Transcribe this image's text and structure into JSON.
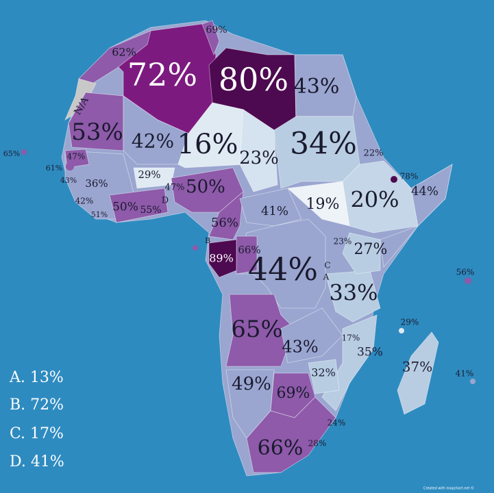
{
  "map": {
    "labels": [
      "72%",
      "80%",
      "69%",
      "62%",
      "43%",
      "N/A",
      "53%",
      "42%",
      "16%",
      "23%",
      "34%",
      "22%",
      "78%",
      "44%",
      "65%",
      "47%",
      "61%",
      "43%",
      "36%",
      "29%",
      "47%",
      "50%",
      "D",
      "42%",
      "50%",
      "55%",
      "51%",
      "19%",
      "20%",
      "41%",
      "56%",
      "B",
      "66%",
      "89%",
      "23%",
      "27%",
      "44%",
      "C",
      "A",
      "56%",
      "33%",
      "65%",
      "29%",
      "17%",
      "43%",
      "35%",
      "37%",
      "41%",
      "32%",
      "49%",
      "69%",
      "24%",
      "28%",
      "66%"
    ],
    "legend": [
      "A. 13%",
      "B. 72%",
      "C. 17%",
      "D. 41%"
    ],
    "credit": "Created with mapchart.net ©"
  }
}
